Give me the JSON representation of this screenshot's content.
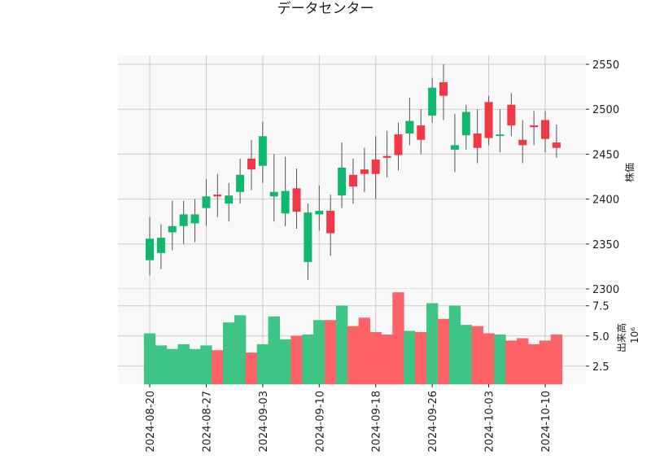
{
  "chart_data": {
    "type": "candlestick",
    "title": "データセンター",
    "price_axis": {
      "label": "株価",
      "ylim": [
        2300,
        2560
      ],
      "ticks": [
        2300,
        2350,
        2400,
        2450,
        2500,
        2550
      ]
    },
    "volume_axis": {
      "label": "出来高",
      "multiplier_label": "10⁶",
      "ylim": [
        1.0,
        8.9
      ],
      "ticks": [
        "2.5",
        "5.0",
        "7.5"
      ],
      "tick_values": [
        2.5,
        5.0,
        7.5
      ]
    },
    "x_ticks": [
      "2024-08-20",
      "2024-08-27",
      "2024-09-03",
      "2024-09-10",
      "2024-09-18",
      "2024-09-26",
      "2024-10-03",
      "2024-10-10"
    ],
    "x_tick_index": [
      0,
      5,
      10,
      15,
      20,
      25,
      30,
      35
    ],
    "grid": true,
    "colors": {
      "up": "#0fb86c",
      "down": "#f53645",
      "up_volume": "#3ec484",
      "down_volume": "#ff6266",
      "wick": "#555555",
      "grid": "#cccccc",
      "panel_bg": "#f8f8f8"
    },
    "candles": [
      {
        "date": "2024-08-20",
        "open": 2332,
        "high": 2380,
        "low": 2315,
        "close": 2356,
        "volume": 5.2
      },
      {
        "date": "2024-08-21",
        "open": 2340,
        "high": 2372,
        "low": 2322,
        "close": 2357,
        "volume": 4.2
      },
      {
        "date": "2024-08-22",
        "open": 2363,
        "high": 2398,
        "low": 2343,
        "close": 2370,
        "volume": 3.9
      },
      {
        "date": "2024-08-23",
        "open": 2370,
        "high": 2398,
        "low": 2350,
        "close": 2383,
        "volume": 4.3
      },
      {
        "date": "2024-08-26",
        "open": 2373,
        "high": 2400,
        "low": 2352,
        "close": 2383,
        "volume": 3.9
      },
      {
        "date": "2024-08-27",
        "open": 2390,
        "high": 2422,
        "low": 2370,
        "close": 2403,
        "volume": 4.2
      },
      {
        "date": "2024-08-28",
        "open": 2405,
        "high": 2428,
        "low": 2380,
        "close": 2403,
        "volume": 3.8
      },
      {
        "date": "2024-08-29",
        "open": 2395,
        "high": 2418,
        "low": 2375,
        "close": 2404,
        "volume": 6.1
      },
      {
        "date": "2024-08-30",
        "open": 2408,
        "high": 2445,
        "low": 2395,
        "close": 2427,
        "volume": 6.7
      },
      {
        "date": "2024-09-02",
        "open": 2445,
        "high": 2466,
        "low": 2410,
        "close": 2433,
        "volume": 3.6
      },
      {
        "date": "2024-09-03",
        "open": 2437,
        "high": 2486,
        "low": 2418,
        "close": 2470,
        "volume": 4.3
      },
      {
        "date": "2024-09-04",
        "open": 2403,
        "high": 2450,
        "low": 2375,
        "close": 2408,
        "volume": 6.6
      },
      {
        "date": "2024-09-05",
        "open": 2384,
        "high": 2447,
        "low": 2370,
        "close": 2409,
        "volume": 4.7
      },
      {
        "date": "2024-09-06",
        "open": 2412,
        "high": 2434,
        "low": 2367,
        "close": 2386,
        "volume": 5.0
      },
      {
        "date": "2024-09-09",
        "open": 2330,
        "high": 2395,
        "low": 2310,
        "close": 2385,
        "volume": 5.1
      },
      {
        "date": "2024-09-10",
        "open": 2383,
        "high": 2415,
        "low": 2365,
        "close": 2387,
        "volume": 6.3
      },
      {
        "date": "2024-09-11",
        "open": 2387,
        "high": 2405,
        "low": 2337,
        "close": 2362,
        "volume": 6.3
      },
      {
        "date": "2024-09-12",
        "open": 2404,
        "high": 2463,
        "low": 2390,
        "close": 2435,
        "volume": 7.5
      },
      {
        "date": "2024-09-13",
        "open": 2427,
        "high": 2445,
        "low": 2395,
        "close": 2414,
        "volume": 5.8
      },
      {
        "date": "2024-09-17",
        "open": 2433,
        "high": 2457,
        "low": 2408,
        "close": 2428,
        "volume": 6.5
      },
      {
        "date": "2024-09-18",
        "open": 2444,
        "high": 2470,
        "low": 2400,
        "close": 2428,
        "volume": 5.3
      },
      {
        "date": "2024-09-19",
        "open": 2448,
        "high": 2476,
        "low": 2424,
        "close": 2446,
        "volume": 5.1
      },
      {
        "date": "2024-09-20",
        "open": 2472,
        "high": 2485,
        "low": 2432,
        "close": 2449,
        "volume": 8.6
      },
      {
        "date": "2024-09-24",
        "open": 2473,
        "high": 2513,
        "low": 2460,
        "close": 2487,
        "volume": 5.4
      },
      {
        "date": "2024-09-25",
        "open": 2482,
        "high": 2500,
        "low": 2450,
        "close": 2466,
        "volume": 5.3
      },
      {
        "date": "2024-09-26",
        "open": 2493,
        "high": 2535,
        "low": 2485,
        "close": 2524,
        "volume": 7.7
      },
      {
        "date": "2024-09-27",
        "open": 2530,
        "high": 2550,
        "low": 2488,
        "close": 2515,
        "volume": 6.4
      },
      {
        "date": "2024-09-30",
        "open": 2455,
        "high": 2495,
        "low": 2430,
        "close": 2460,
        "volume": 7.5
      },
      {
        "date": "2024-10-01",
        "open": 2471,
        "high": 2505,
        "low": 2455,
        "close": 2497,
        "volume": 5.9
      },
      {
        "date": "2024-10-02",
        "open": 2473,
        "high": 2500,
        "low": 2440,
        "close": 2457,
        "volume": 5.8
      },
      {
        "date": "2024-10-03",
        "open": 2508,
        "high": 2515,
        "low": 2460,
        "close": 2468,
        "volume": 5.2
      },
      {
        "date": "2024-10-04",
        "open": 2472,
        "high": 2500,
        "low": 2452,
        "close": 2472,
        "volume": 5.1
      },
      {
        "date": "2024-10-07",
        "open": 2505,
        "high": 2518,
        "low": 2470,
        "close": 2482,
        "volume": 4.6
      },
      {
        "date": "2024-10-08",
        "open": 2466,
        "high": 2488,
        "low": 2440,
        "close": 2460,
        "volume": 4.8
      },
      {
        "date": "2024-10-09",
        "open": 2482,
        "high": 2498,
        "low": 2460,
        "close": 2480,
        "volume": 4.3
      },
      {
        "date": "2024-10-10",
        "open": 2488,
        "high": 2498,
        "low": 2452,
        "close": 2467,
        "volume": 4.6
      },
      {
        "date": "2024-10-11",
        "open": 2463,
        "high": 2483,
        "low": 2446,
        "close": 2457,
        "volume": 5.1
      }
    ]
  }
}
